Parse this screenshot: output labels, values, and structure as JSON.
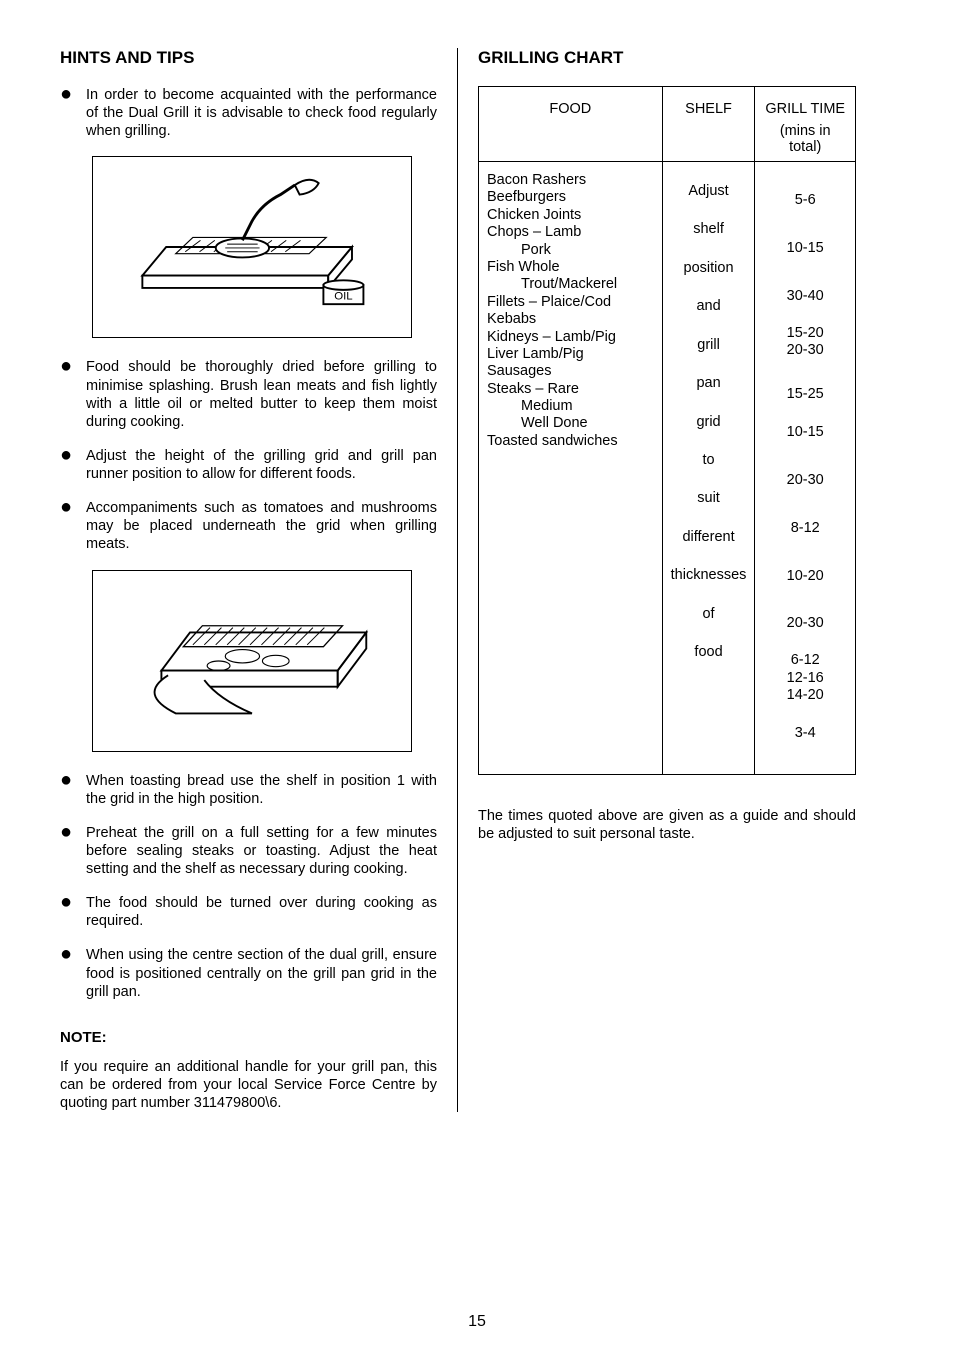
{
  "left": {
    "heading": "HINTS AND TIPS",
    "tips": [
      "In order to become acquainted with the performance of the Dual Grill it is advisable to check food regularly when grilling.",
      "Food should be thoroughly dried before grilling to minimise splashing.  Brush lean meats and fish lightly with a little oil or melted butter to keep them moist during cooking.",
      "Adjust the height of the grilling grid and grill pan runner position to allow for different foods.",
      "Accompaniments such as tomatoes and mushrooms may be placed underneath the grid when grilling meats.",
      "When toasting bread use the shelf in position 1 with the grid in the high position.",
      "Preheat the grill on a full setting for a few minutes before sealing steaks or toasting.  Adjust the heat setting and the shelf as necessary during cooking.",
      "The food should be turned over during cooking as required.",
      "When using the centre section of the dual grill, ensure food is positioned centrally on the grill pan grid in the grill pan."
    ],
    "note_head": "NOTE:",
    "note_text": "If you require an additional handle for your grill pan, this can be ordered from your local Service Force Centre by quoting part number 311479800\\6."
  },
  "right": {
    "heading": "GRILLING CHART",
    "headers": {
      "food": "FOOD",
      "shelf": "SHELF",
      "time": "GRILL TIME",
      "time_sub": "(mins in total)"
    },
    "shelf_words": [
      "Adjust",
      "shelf",
      "position",
      "and",
      "grill",
      "pan",
      "grid",
      "to",
      "suit",
      "different",
      "thicknesses",
      "of",
      "food"
    ],
    "rows": [
      {
        "food_html": "<span class='food-block'><span class='food-main'>Bacon Rashers</span></span>",
        "time_html": "5-6"
      },
      {
        "food_html": "<span class='food-block'><span class='food-main'>Beefburgers</span></span>",
        "time_html": "10-15"
      },
      {
        "food_html": "<span class='food-block'><span class='food-main'>Chicken Joints</span></span>",
        "time_html": "30-40"
      },
      {
        "food_html": "<span class='food-block'><span class='food-main'>Chops – Lamb</span><span class='food-indent'>Pork</span></span>",
        "time_html": "<span class='tight'>15-20</span><span class='tight'>20-30</span>"
      },
      {
        "food_html": "<span class='food-block'><span class='food-main'>Fish Whole</span><span class='food-indent'>Trout/Mackerel</span></span>",
        "time_html": "<span class='tight'>&nbsp;</span><span class='tight'>15-25</span>"
      },
      {
        "food_html": "<span class='food-block'><span class='food-main'>Fillets – Plaice/Cod</span></span>",
        "time_html": "10-15"
      },
      {
        "food_html": "<span class='food-block'><span class='food-main'>Kebabs</span></span>",
        "time_html": "20-30"
      },
      {
        "food_html": "<span class='food-block'><span class='food-main'>Kidneys – Lamb/Pig</span></span>",
        "time_html": "8-12"
      },
      {
        "food_html": "<span class='food-block'><span class='food-main'>Liver Lamb/Pig</span></span>",
        "time_html": "10-20"
      },
      {
        "food_html": "<span class='food-block'><span class='food-main'>Sausages</span></span>",
        "time_html": "20-30"
      },
      {
        "food_html": "<span class='food-block'><span class='food-main'>Steaks – Rare</span><span class='food-indent'>Medium</span><span class='food-indent'>Well Done</span></span>",
        "time_html": "<span class='tight'>6-12</span><span class='tight'>12-16</span><span class='tight'>14-20</span>"
      },
      {
        "food_html": "<span class='food-block'><span class='food-main'>Toasted sandwiches</span></span>",
        "time_html": "3-4"
      }
    ],
    "bottom_note": "The times quoted above are given as a guide and should be adjusted to suit personal taste."
  },
  "page_number": "15"
}
